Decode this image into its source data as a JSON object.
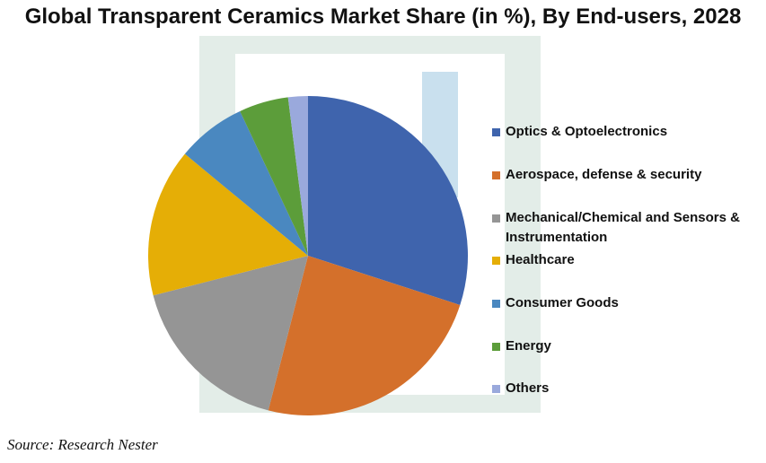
{
  "chart_data": {
    "type": "pie",
    "title": "Global Transparent Ceramics Market Share (in %), By End-users, 2028",
    "categories": [
      "Optics & Optoelectronics",
      "Aerospace, defense & security",
      "Mechanical/Chemical and Sensors & Instrumentation",
      "Healthcare",
      "Consumer Goods",
      "Energy",
      "Others"
    ],
    "values": [
      30,
      24,
      17,
      15,
      7,
      5,
      2
    ],
    "colors": [
      "#3f64ad",
      "#d4702b",
      "#959595",
      "#e5ae06",
      "#4a88c0",
      "#5c9d3a",
      "#9aa9dc"
    ],
    "legend": "right",
    "source": "Source: Research Nester"
  }
}
